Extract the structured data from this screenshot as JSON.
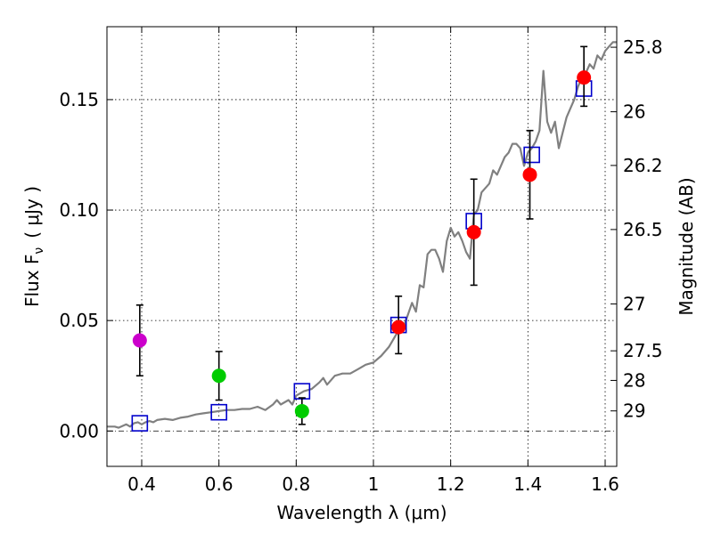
{
  "chart_data": {
    "type": "scatter",
    "xlabel": "Wavelength  λ (μm)",
    "ylabel": "Flux  F",
    "ylabel_sub": "ν",
    "ylabel_unit": "( μJy )",
    "y2label": "Magnitude (AB)",
    "xlim": [
      0.31,
      1.63
    ],
    "ylim": [
      -0.016,
      0.183
    ],
    "grid": true,
    "x_ticks": [
      {
        "v": 0.4,
        "label": "0.4"
      },
      {
        "v": 0.6,
        "label": "0.6"
      },
      {
        "v": 0.8,
        "label": "0.8"
      },
      {
        "v": 1.0,
        "label": "1"
      },
      {
        "v": 1.2,
        "label": "1.2"
      },
      {
        "v": 1.4,
        "label": "1.4"
      },
      {
        "v": 1.6,
        "label": "1.6"
      }
    ],
    "y_ticks": [
      {
        "v": 0.0,
        "label": "0.00"
      },
      {
        "v": 0.05,
        "label": "0.05"
      },
      {
        "v": 0.1,
        "label": "0.10"
      },
      {
        "v": 0.15,
        "label": "0.15"
      }
    ],
    "mag_ticks": [
      {
        "v": 0.1737,
        "label": "25.8"
      },
      {
        "v": 0.1445,
        "label": "26"
      },
      {
        "v": 0.1202,
        "label": "26.2"
      },
      {
        "v": 0.0912,
        "label": "26.5"
      },
      {
        "v": 0.0575,
        "label": "27"
      },
      {
        "v": 0.0363,
        "label": "27.5"
      },
      {
        "v": 0.0229,
        "label": "28"
      },
      {
        "v": 0.0091,
        "label": "29"
      }
    ],
    "series": [
      {
        "kind": "line",
        "color": "#808080",
        "points": [
          [
            0.31,
            0.002
          ],
          [
            0.33,
            0.002
          ],
          [
            0.34,
            0.0015
          ],
          [
            0.36,
            0.003
          ],
          [
            0.37,
            0.002
          ],
          [
            0.38,
            0.0035
          ],
          [
            0.39,
            0.004
          ],
          [
            0.4,
            0.003
          ],
          [
            0.41,
            0.004
          ],
          [
            0.42,
            0.0045
          ],
          [
            0.43,
            0.004
          ],
          [
            0.44,
            0.005
          ],
          [
            0.46,
            0.0055
          ],
          [
            0.48,
            0.005
          ],
          [
            0.5,
            0.006
          ],
          [
            0.52,
            0.0065
          ],
          [
            0.54,
            0.0075
          ],
          [
            0.56,
            0.008
          ],
          [
            0.58,
            0.0085
          ],
          [
            0.6,
            0.009
          ],
          [
            0.62,
            0.0095
          ],
          [
            0.64,
            0.0095
          ],
          [
            0.66,
            0.01
          ],
          [
            0.68,
            0.01
          ],
          [
            0.7,
            0.011
          ],
          [
            0.72,
            0.0095
          ],
          [
            0.74,
            0.012
          ],
          [
            0.75,
            0.014
          ],
          [
            0.76,
            0.012
          ],
          [
            0.78,
            0.014
          ],
          [
            0.79,
            0.012
          ],
          [
            0.8,
            0.016
          ],
          [
            0.82,
            0.018
          ],
          [
            0.84,
            0.019
          ],
          [
            0.86,
            0.022
          ],
          [
            0.87,
            0.024
          ],
          [
            0.88,
            0.021
          ],
          [
            0.9,
            0.025
          ],
          [
            0.92,
            0.026
          ],
          [
            0.94,
            0.026
          ],
          [
            0.96,
            0.028
          ],
          [
            0.98,
            0.03
          ],
          [
            1.0,
            0.031
          ],
          [
            1.02,
            0.034
          ],
          [
            1.04,
            0.038
          ],
          [
            1.06,
            0.044
          ],
          [
            1.07,
            0.05
          ],
          [
            1.08,
            0.048
          ],
          [
            1.1,
            0.058
          ],
          [
            1.11,
            0.054
          ],
          [
            1.12,
            0.066
          ],
          [
            1.13,
            0.065
          ],
          [
            1.14,
            0.08
          ],
          [
            1.15,
            0.082
          ],
          [
            1.16,
            0.082
          ],
          [
            1.17,
            0.078
          ],
          [
            1.18,
            0.072
          ],
          [
            1.19,
            0.086
          ],
          [
            1.2,
            0.092
          ],
          [
            1.21,
            0.088
          ],
          [
            1.22,
            0.09
          ],
          [
            1.23,
            0.086
          ],
          [
            1.24,
            0.081
          ],
          [
            1.25,
            0.078
          ],
          [
            1.26,
            0.098
          ],
          [
            1.27,
            0.1
          ],
          [
            1.28,
            0.108
          ],
          [
            1.29,
            0.11
          ],
          [
            1.3,
            0.112
          ],
          [
            1.31,
            0.118
          ],
          [
            1.32,
            0.116
          ],
          [
            1.33,
            0.12
          ],
          [
            1.34,
            0.124
          ],
          [
            1.35,
            0.126
          ],
          [
            1.36,
            0.13
          ],
          [
            1.37,
            0.13
          ],
          [
            1.38,
            0.128
          ],
          [
            1.39,
            0.12
          ],
          [
            1.4,
            0.126
          ],
          [
            1.41,
            0.128
          ],
          [
            1.42,
            0.131
          ],
          [
            1.43,
            0.136
          ],
          [
            1.44,
            0.163
          ],
          [
            1.45,
            0.14
          ],
          [
            1.46,
            0.135
          ],
          [
            1.47,
            0.14
          ],
          [
            1.48,
            0.128
          ],
          [
            1.49,
            0.135
          ],
          [
            1.5,
            0.142
          ],
          [
            1.51,
            0.146
          ],
          [
            1.52,
            0.15
          ],
          [
            1.53,
            0.156
          ],
          [
            1.54,
            0.16
          ],
          [
            1.55,
            0.162
          ],
          [
            1.56,
            0.166
          ],
          [
            1.57,
            0.164
          ],
          [
            1.58,
            0.17
          ],
          [
            1.59,
            0.168
          ],
          [
            1.6,
            0.172
          ],
          [
            1.61,
            0.174
          ],
          [
            1.62,
            0.176
          ],
          [
            1.63,
            0.176
          ]
        ]
      },
      {
        "kind": "square",
        "color": "#0000cc",
        "points": [
          [
            0.395,
            0.0035
          ],
          [
            0.6,
            0.0085
          ],
          [
            0.815,
            0.018
          ],
          [
            1.065,
            0.048
          ],
          [
            1.26,
            0.095
          ],
          [
            1.41,
            0.125
          ],
          [
            1.545,
            0.155
          ]
        ]
      },
      {
        "kind": "circle",
        "color": "#cc00cc",
        "points": [
          {
            "x": 0.395,
            "y": 0.041,
            "lo": 0.025,
            "hi": 0.057
          }
        ]
      },
      {
        "kind": "circle",
        "color": "#00cc00",
        "points": [
          {
            "x": 0.6,
            "y": 0.025,
            "lo": 0.014,
            "hi": 0.036
          },
          {
            "x": 0.815,
            "y": 0.009,
            "lo": 0.003,
            "hi": 0.015
          }
        ]
      },
      {
        "kind": "circle",
        "color": "#ff0000",
        "points": [
          {
            "x": 1.065,
            "y": 0.047,
            "lo": 0.035,
            "hi": 0.061
          },
          {
            "x": 1.26,
            "y": 0.09,
            "lo": 0.066,
            "hi": 0.114
          },
          {
            "x": 1.405,
            "y": 0.116,
            "lo": 0.096,
            "hi": 0.136
          },
          {
            "x": 1.545,
            "y": 0.16,
            "lo": 0.147,
            "hi": 0.174
          }
        ]
      }
    ]
  }
}
